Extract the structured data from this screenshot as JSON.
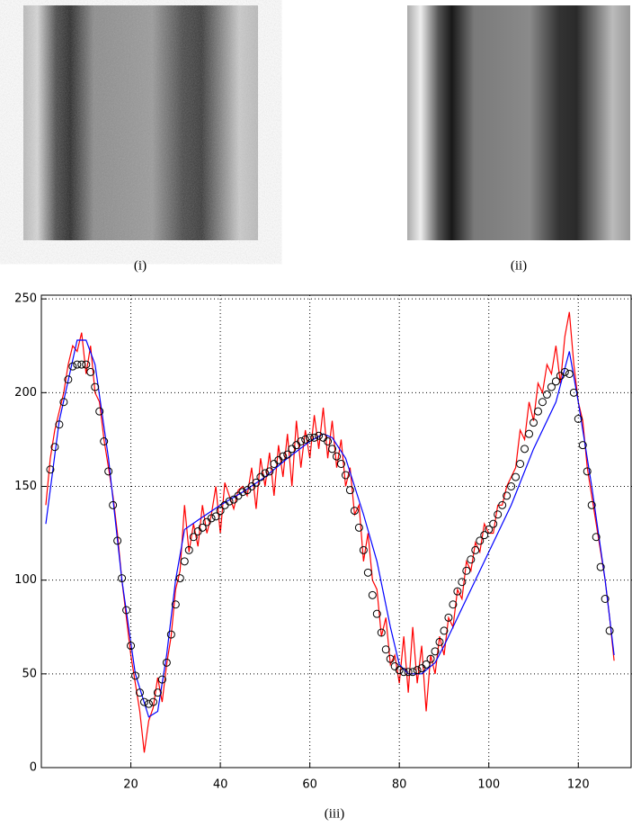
{
  "panel_labels": [
    "(i)",
    "(ii)"
  ],
  "chart_data": {
    "type": "line",
    "caption": "(iii)",
    "xlim": [
      0,
      132
    ],
    "ylim": [
      0,
      252
    ],
    "xticks": [
      20,
      40,
      60,
      80,
      100,
      120
    ],
    "yticks": [
      0,
      50,
      100,
      150,
      200,
      250
    ],
    "grid": true,
    "series": [
      {
        "color": "#ff0000",
        "marker": "none",
        "x": [
          1,
          2,
          3,
          4,
          5,
          6,
          7,
          8,
          9,
          10,
          11,
          12,
          13,
          14,
          15,
          16,
          17,
          18,
          19,
          20,
          21,
          22,
          23,
          24,
          25,
          26,
          27,
          28,
          29,
          30,
          31,
          32,
          33,
          34,
          35,
          36,
          37,
          38,
          39,
          40,
          41,
          42,
          43,
          44,
          45,
          46,
          47,
          48,
          49,
          50,
          51,
          52,
          53,
          54,
          55,
          56,
          57,
          58,
          59,
          60,
          61,
          62,
          63,
          64,
          65,
          66,
          67,
          68,
          69,
          70,
          71,
          72,
          73,
          74,
          75,
          76,
          77,
          78,
          79,
          80,
          81,
          82,
          83,
          84,
          85,
          86,
          87,
          88,
          89,
          90,
          91,
          92,
          93,
          94,
          95,
          96,
          97,
          98,
          99,
          100,
          101,
          102,
          103,
          104,
          105,
          106,
          107,
          108,
          109,
          110,
          111,
          112,
          113,
          114,
          115,
          116,
          117,
          118,
          119,
          120,
          121,
          122,
          123,
          124,
          125,
          126,
          127,
          128
        ],
        "values": [
          140,
          165,
          180,
          190,
          200,
          215,
          225,
          222,
          232,
          210,
          225,
          200,
          195,
          175,
          160,
          145,
          125,
          100,
          80,
          60,
          45,
          30,
          8,
          25,
          32,
          48,
          35,
          55,
          70,
          95,
          105,
          140,
          115,
          130,
          118,
          140,
          125,
          135,
          150,
          125,
          152,
          145,
          138,
          148,
          150,
          145,
          160,
          138,
          165,
          150,
          168,
          145,
          172,
          155,
          178,
          150,
          185,
          160,
          180,
          165,
          188,
          170,
          192,
          165,
          185,
          160,
          175,
          150,
          160,
          135,
          140,
          110,
          125,
          100,
          95,
          70,
          80,
          55,
          60,
          45,
          70,
          40,
          75,
          45,
          65,
          30,
          60,
          50,
          70,
          60,
          80,
          75,
          95,
          90,
          110,
          105,
          120,
          115,
          130,
          125,
          125,
          140,
          140,
          150,
          155,
          160,
          180,
          175,
          195,
          185,
          205,
          200,
          215,
          210,
          225,
          205,
          230,
          243,
          215,
          195,
          185,
          160,
          145,
          130,
          115,
          100,
          80,
          57
        ]
      },
      {
        "color": "#0000ff",
        "marker": "none",
        "x": [
          1,
          4,
          8,
          10,
          12,
          15,
          18,
          21,
          24,
          26,
          28,
          30,
          32,
          35,
          40,
          45,
          50,
          55,
          60,
          63,
          65,
          68,
          72,
          75,
          78,
          80,
          82,
          85,
          88,
          90,
          95,
          100,
          105,
          110,
          115,
          118,
          120,
          123,
          126,
          128
        ],
        "values": [
          130,
          185,
          228,
          228,
          215,
          165,
          100,
          50,
          27,
          30,
          60,
          100,
          127,
          132,
          140,
          147,
          155,
          165,
          174,
          178,
          176,
          165,
          135,
          110,
          75,
          55,
          50,
          50,
          56,
          65,
          90,
          115,
          140,
          170,
          195,
          222,
          195,
          150,
          100,
          60
        ]
      },
      {
        "color": "#000000",
        "marker": "circle",
        "x": [
          2,
          3,
          4,
          5,
          6,
          7,
          8,
          9,
          10,
          11,
          12,
          13,
          14,
          15,
          16,
          17,
          18,
          19,
          20,
          21,
          22,
          23,
          24,
          25,
          26,
          27,
          28,
          29,
          30,
          31,
          32,
          33,
          34,
          35,
          36,
          37,
          38,
          39,
          40,
          41,
          42,
          43,
          44,
          45,
          46,
          47,
          48,
          49,
          50,
          51,
          52,
          53,
          54,
          55,
          56,
          57,
          58,
          59,
          60,
          61,
          62,
          63,
          64,
          65,
          66,
          67,
          68,
          69,
          70,
          71,
          72,
          73,
          74,
          75,
          76,
          77,
          78,
          79,
          80,
          81,
          82,
          83,
          84,
          85,
          86,
          87,
          88,
          89,
          90,
          91,
          92,
          93,
          94,
          95,
          96,
          97,
          98,
          99,
          100,
          101,
          102,
          103,
          104,
          105,
          106,
          107,
          108,
          109,
          110,
          111,
          112,
          113,
          114,
          115,
          116,
          117,
          118,
          119,
          120,
          121,
          122,
          123,
          124,
          125,
          126,
          127
        ],
        "values": [
          159,
          171,
          183,
          195,
          207,
          214,
          215,
          215,
          215,
          211,
          203,
          190,
          174,
          158,
          140,
          121,
          101,
          84,
          65,
          49,
          40,
          35,
          34,
          35,
          40,
          47,
          56,
          71,
          87,
          101,
          110,
          116,
          123,
          126,
          128,
          131,
          133,
          134,
          137,
          140,
          142,
          143,
          145,
          147,
          148,
          150,
          152,
          155,
          157,
          158,
          162,
          164,
          166,
          167,
          170,
          172,
          174,
          175,
          176,
          176,
          177,
          176,
          174,
          170,
          166,
          162,
          156,
          148,
          137,
          128,
          116,
          104,
          92,
          82,
          72,
          63,
          58,
          54,
          52,
          51,
          51,
          51,
          52,
          53,
          55,
          58,
          62,
          67,
          73,
          80,
          87,
          94,
          99,
          105,
          111,
          116,
          121,
          124,
          127,
          130,
          135,
          140,
          145,
          150,
          155,
          162,
          170,
          178,
          184,
          190,
          195,
          199,
          203,
          206,
          209,
          211,
          210,
          200,
          186,
          172,
          158,
          140,
          123,
          107,
          90,
          73
        ]
      }
    ]
  }
}
